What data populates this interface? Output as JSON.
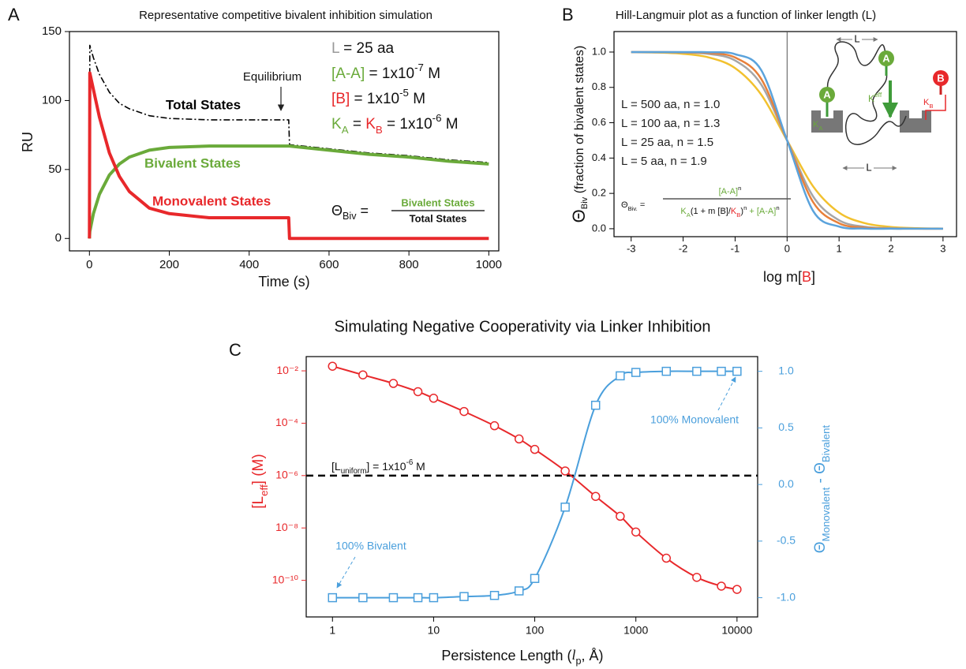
{
  "chart_data": [
    {
      "type": "line",
      "panel_label": "A",
      "title": "Representative competitive bivalent inhibition simulation",
      "xlabel": "Time (s)",
      "ylabel": "RU",
      "x": [
        0,
        1,
        10,
        25,
        50,
        75,
        100,
        150,
        200,
        300,
        400,
        499,
        501,
        600,
        700,
        800,
        900,
        1000
      ],
      "xlim": [
        -50,
        1025
      ],
      "xticks": [
        0,
        200,
        400,
        600,
        800,
        1000
      ],
      "ylim": [
        -9,
        150
      ],
      "yticks": [
        0,
        50,
        100,
        150
      ],
      "series": [
        {
          "name": "Total States",
          "color": "#000000",
          "dash": "dashdot",
          "values": [
            0,
            140,
            131,
            119,
            106,
            98,
            94,
            89,
            87,
            86,
            86,
            86,
            68,
            65,
            62,
            60,
            57,
            55
          ]
        },
        {
          "name": "Bivalent States",
          "color": "#6aaa3a",
          "values": [
            0,
            5,
            18,
            32,
            46,
            54,
            59,
            64,
            66,
            67,
            67,
            67,
            67,
            64,
            61,
            59,
            56,
            54
          ]
        },
        {
          "name": "Monovalent States",
          "color": "#e8282b",
          "values": [
            0,
            120,
            108,
            88,
            62,
            45,
            34,
            22,
            18,
            15,
            15,
            15,
            0,
            0,
            0,
            0,
            0,
            0
          ]
        }
      ],
      "annotations": {
        "parameters": [
          [
            "L",
            " = 25 aa"
          ],
          [
            "[A-A]",
            " = 1x10",
            "-7",
            " M"
          ],
          [
            "[B]",
            " = 1x10",
            "-5",
            " M"
          ],
          [
            "K",
            "A",
            " = ",
            "K",
            "B",
            " = 1x10",
            "-6",
            " M"
          ]
        ],
        "equilibrium": "Equilibrium",
        "formula": {
          "lhs": [
            "Θ",
            "Biv",
            " ="
          ],
          "numerator": "Bivalent States",
          "denominator": "Total States"
        }
      }
    },
    {
      "type": "line",
      "panel_label": "B",
      "title": "Hill-Langmuir plot as a function of linker length (L)",
      "xlabel": [
        "log m[",
        "B",
        "]"
      ],
      "ylabel": [
        "Θ",
        "Biv",
        " (fraction of bivalent states)"
      ],
      "x": [
        -3,
        -2.5,
        -2,
        -1.5,
        -1,
        -0.5,
        0,
        0.5,
        1,
        1.5,
        2,
        2.5,
        3
      ],
      "xlim": [
        -3.33,
        3.26
      ],
      "xticks": [
        -3,
        -2,
        -1,
        0,
        1,
        2,
        3
      ],
      "ylim": [
        -0.045,
        1.116
      ],
      "yticks": [
        {
          "value": 0,
          "label": "0.0"
        },
        0.2,
        0.4,
        0.6,
        0.8,
        {
          "value": 1,
          "label": "1.0"
        }
      ],
      "vline": 0,
      "series": [
        {
          "name": "L = 500 aa, n = 1.0",
          "color": "#f2c12e",
          "values": [
            0.999,
            0.997,
            0.99,
            0.969,
            0.909,
            0.76,
            0.5,
            0.24,
            0.091,
            0.031,
            0.01,
            0.003,
            0.001
          ]
        },
        {
          "name": "L = 100 aa, n = 1.3",
          "color": "#a6a6a6",
          "values": [
            1,
            0.999,
            0.997,
            0.989,
            0.952,
            0.817,
            0.5,
            0.183,
            0.048,
            0.011,
            0.003,
            0.001,
            0
          ]
        },
        {
          "name": "L = 25 aa, n = 1.5",
          "color": "#e8803a",
          "values": [
            1,
            1,
            0.999,
            0.994,
            0.969,
            0.849,
            0.5,
            0.151,
            0.031,
            0.006,
            0.001,
            0,
            0
          ]
        },
        {
          "name": "L = 5 aa, n = 1.9",
          "color": "#5ba3dc",
          "values": [
            1,
            1,
            1,
            0.999,
            0.988,
            0.899,
            0.5,
            0.101,
            0.012,
            0.001,
            0,
            0,
            0
          ]
        }
      ],
      "formula": {
        "lhs": [
          "Θ",
          "Biv.",
          " ="
        ],
        "numerator": [
          "[A-A]",
          "n"
        ],
        "denominator": [
          "K",
          "A",
          "(1 + ",
          "m [B]",
          "/",
          "K",
          "B",
          ")",
          "n",
          " + [A-A]",
          "n"
        ]
      },
      "schematic": {
        "linker": "L",
        "a": "A",
        "b": "B",
        "keff": [
          "K",
          "eff"
        ],
        "ka": [
          "K",
          "A"
        ],
        "kb": [
          "K",
          "B"
        ]
      }
    },
    {
      "type": "line",
      "panel_label": "C",
      "title": "Simulating Negative Cooperativity via Linker Inhibition",
      "xlabel": [
        "Persistence Length (",
        "l",
        "p",
        ", Å)"
      ],
      "ylabel": [
        "[L",
        "eff",
        "] (M)"
      ],
      "y2label": [
        "Θ",
        "Monovalent",
        " - Θ",
        "Bivalent"
      ],
      "xscale": "log",
      "yscale": "log",
      "x": [
        1,
        2,
        4,
        7,
        10,
        20,
        40,
        70,
        100,
        200,
        400,
        700,
        1000,
        2000,
        4000,
        7000,
        10000
      ],
      "xlim": [
        0.55,
        16000
      ],
      "xticks": [
        1,
        10,
        100,
        1000,
        10000
      ],
      "ylim": [
        4e-12,
        0.035
      ],
      "yticks": [
        {
          "value": 0.01,
          "label": "10⁻²"
        },
        {
          "value": 0.0001,
          "label": "10⁻⁴"
        },
        {
          "value": 1e-06,
          "label": "10⁻⁶"
        },
        {
          "value": 1e-08,
          "label": "10⁻⁸"
        },
        {
          "value": 1e-10,
          "label": "10⁻¹⁰"
        }
      ],
      "y2lim": [
        -1.17,
        1.13
      ],
      "y2ticks": [
        {
          "value": -1,
          "label": "-1.0"
        },
        -0.5,
        {
          "value": 0,
          "label": "0.0"
        },
        0.5,
        {
          "value": 1,
          "label": "1.0"
        }
      ],
      "series": [
        {
          "color": "#e8282b",
          "marker": "circle",
          "values": [
            0.015,
            0.007,
            0.0033,
            0.0016,
            0.0009,
            0.00028,
            8e-05,
            2.5e-05,
            1e-05,
            1.5e-06,
            1.6e-07,
            2.8e-08,
            7e-09,
            7e-10,
            1.3e-10,
            6e-11,
            4.5e-11
          ]
        },
        {
          "color": "#4a9fdc",
          "marker": "square",
          "axis": "y2",
          "values": [
            -1,
            -1,
            -1,
            -1,
            -1,
            -0.99,
            -0.98,
            -0.94,
            -0.83,
            -0.2,
            0.7,
            0.96,
            0.99,
            1,
            1,
            1,
            1
          ]
        }
      ],
      "reference_line": {
        "value": 1e-06,
        "label": [
          "[L",
          "uniform",
          "] = 1x10",
          "-6",
          " M"
        ]
      },
      "annotations": {
        "monovalent": "100% Monovalent",
        "bivalent": "100% Bivalent"
      }
    }
  ]
}
